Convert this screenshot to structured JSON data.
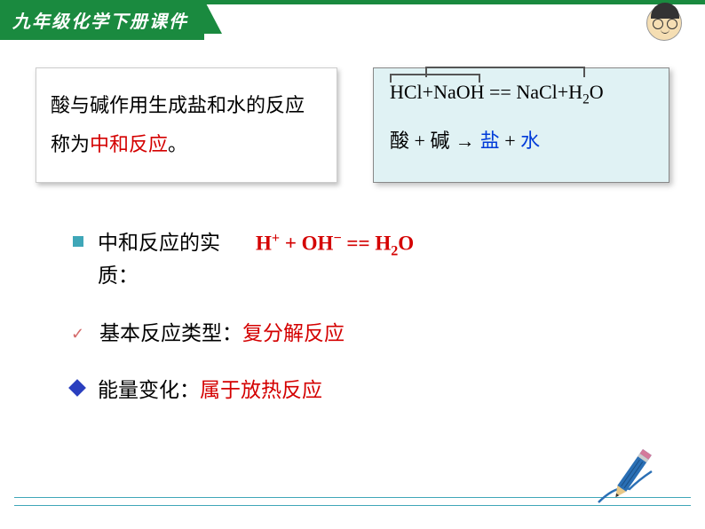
{
  "colors": {
    "header_green": "#1a8a3f",
    "accent_red": "#d40000",
    "accent_blue": "#003bd9",
    "box_bg": "#e0f2f4",
    "teal": "#3fa7b8",
    "diamond_blue": "#2a3fbf",
    "check_pink": "#d46a6a"
  },
  "header": {
    "title": "九年级化学下册课件"
  },
  "definition": {
    "prefix": "酸与碱作用生成盐和水的反应称为",
    "keyword": "中和反应",
    "suffix": "。"
  },
  "equation_box": {
    "line1_html": "HCl+NaOH == NaCl+H<sub>2</sub>O",
    "line2_acid": "酸",
    "line2_plus1": " + ",
    "line2_base": "碱",
    "line2_arrow": "   →   ",
    "line2_salt": "盐",
    "line2_plus2": " + ",
    "line2_water": "水"
  },
  "points": {
    "essence": {
      "label": "中和反应的实质：",
      "equation": "H<sup>+</sup> + OH<sup>−</sup> == H<sub>2</sub>O"
    },
    "type": {
      "label": "基本反应类型：",
      "value": "复分解反应"
    },
    "energy": {
      "label": "能量变化：",
      "value": "属于放热反应"
    }
  }
}
